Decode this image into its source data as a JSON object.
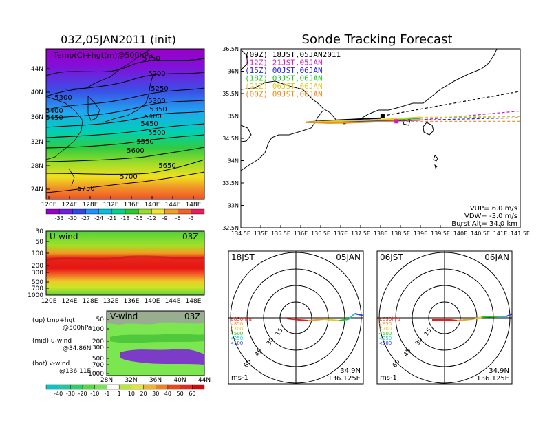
{
  "left_title": "03Z,05JAN2011  (init)",
  "right_title": "Sonde Tracking Forecast",
  "upper_map": {
    "label": "Temp(C)+hgt(m)@500hPa",
    "lon_ticks": [
      "120E",
      "124E",
      "128E",
      "132E",
      "136E",
      "140E",
      "144E",
      "148E"
    ],
    "lat_ticks": [
      "44N",
      "40N",
      "36N",
      "32N",
      "28N",
      "24N"
    ],
    "contours": [
      {
        "label": "5150"
      },
      {
        "label": "5200"
      },
      {
        "label": "5250"
      },
      {
        "label": "5300"
      },
      {
        "label": "5300"
      },
      {
        "label": "5350"
      },
      {
        "label": "5400"
      },
      {
        "label": "5450"
      },
      {
        "label": "5500"
      },
      {
        "label": "5550"
      },
      {
        "label": "5600"
      },
      {
        "label": "5650"
      },
      {
        "label": "5700"
      },
      {
        "label": "5750"
      },
      {
        "label": "5400"
      },
      {
        "label": "5450"
      }
    ],
    "temp_scale": [
      "-33",
      "-30",
      "-27",
      "-24",
      "-21",
      "-18",
      "-15",
      "-12",
      "-9",
      "-6",
      "-3"
    ],
    "temp_colors": [
      "#9a00c8",
      "#6e20e0",
      "#3048e6",
      "#1e90ff",
      "#00c0e0",
      "#00d48c",
      "#28c828",
      "#98dc28",
      "#f0e628",
      "#f0a028",
      "#f06428",
      "#e61e5a"
    ]
  },
  "u_panel": {
    "label": "U-wind",
    "time": "03Z",
    "p_ticks": [
      "30",
      "50",
      "100",
      "200",
      "300",
      "500",
      "700",
      "1000"
    ],
    "lon_ticks": [
      "120E",
      "124E",
      "128E",
      "132E",
      "136E",
      "140E",
      "144E",
      "148E"
    ]
  },
  "v_panel": {
    "label": "V-wind",
    "time": "03Z",
    "p_ticks": [
      "50",
      "100",
      "200",
      "300",
      "500",
      "700",
      "1000"
    ],
    "lat_ticks": [
      "28N",
      "32N",
      "36N",
      "40N",
      "44N"
    ]
  },
  "side_notes": {
    "up": "(up) tmp+hgt",
    "up2": "@500hPa",
    "mid": "(mid) u-wind",
    "mid2": "@34.86N",
    "bot": "(bot) v-wind",
    "bot2": "@136.11E"
  },
  "wind_scale": [
    "-40",
    "-30",
    "-20",
    "-10",
    "-1",
    "1",
    "10",
    "20",
    "30",
    "40",
    "50",
    "60"
  ],
  "wind_colors": [
    "#00c8c8",
    "#1ec8a0",
    "#28d264",
    "#50dc3c",
    "#78e650",
    "#ffffff",
    "#b4ec28",
    "#e6e628",
    "#f0b428",
    "#f0821e",
    "#f04614",
    "#e6281e",
    "#d20a0a"
  ],
  "chart_data": {
    "type": "line",
    "title": "Sonde Tracking Forecast",
    "x_ticks": [
      "134.5E",
      "135E",
      "135.5E",
      "136E",
      "136.5E",
      "137E",
      "137.5E",
      "138E",
      "138.5E",
      "139E",
      "139.5E",
      "140E",
      "140.5E",
      "141E",
      "141.5E"
    ],
    "y_ticks": [
      "36.5N",
      "36N",
      "35.5N",
      "35N",
      "34.5N",
      "34N",
      "33.5N",
      "33N",
      "32.5N"
    ],
    "xlim": [
      134.5,
      141.5
    ],
    "ylim": [
      32.5,
      36.5
    ],
    "series": [
      {
        "name": "(09Z)  18JST,05JAN2011",
        "color": "#000000",
        "x": [
          136.125,
          136.8,
          137.5,
          138.0,
          138.05
        ],
        "y": [
          34.86,
          34.9,
          34.93,
          34.95,
          35.0
        ]
      },
      {
        "name": "(12Z)  21JST,05JAN",
        "color": "#c81ec8",
        "x": [
          136.125,
          136.8,
          137.5,
          138.3,
          139.0
        ],
        "y": [
          34.86,
          34.87,
          34.88,
          34.89,
          34.91
        ]
      },
      {
        "name": "(15Z)  00JST,06JAN",
        "color": "#2828e6",
        "x": [
          136.125,
          136.8,
          137.5,
          138.2,
          138.6
        ],
        "y": [
          34.86,
          34.87,
          34.88,
          34.89,
          34.9
        ]
      },
      {
        "name": "(18Z)  03JST,06JAN",
        "color": "#1ec81e",
        "x": [
          136.125,
          136.8,
          137.5,
          138.3,
          139.0
        ],
        "y": [
          34.86,
          34.88,
          34.9,
          34.92,
          34.95
        ]
      },
      {
        "name": "(21Z)  06JST,06JAN",
        "color": "#e6c828",
        "x": [
          136.125,
          136.8,
          137.5,
          138.3,
          139.0
        ],
        "y": [
          34.86,
          34.88,
          34.9,
          34.93,
          34.97
        ]
      },
      {
        "name": "(00Z)  09JST,06JAN",
        "color": "#f08c1e",
        "x": [
          136.125,
          136.7,
          137.3,
          137.9,
          138.4
        ],
        "y": [
          34.86,
          34.84,
          34.85,
          34.87,
          34.88
        ]
      }
    ],
    "burst_marks": [
      {
        "x": 138.05,
        "y": 35.0,
        "color": "#000000"
      },
      {
        "x": 138.4,
        "y": 34.88,
        "color": "#c81ec8"
      }
    ],
    "info": [
      "VUP=  6.0  m/s",
      "VDW= -3.0  m/s",
      "Burst Alt= 34.0  km"
    ]
  },
  "hodographs": [
    {
      "time_left": "18JST",
      "time_right": "05JAN",
      "rings": [
        "15",
        "30",
        "45",
        "60"
      ],
      "units": "ms-1",
      "lat": "34.9N",
      "lon": "136.125E",
      "levels": [
        {
          "label": "≥850hPa",
          "color": "#e61e1e"
        },
        {
          "label": "<850",
          "color": "#f0a028"
        },
        {
          "label": "<700",
          "color": "#e6c828"
        },
        {
          "label": "<500",
          "color": "#1ec81e"
        },
        {
          "label": "<250",
          "color": "#1ec8c8"
        },
        {
          "label": "<100",
          "color": "#2846e6"
        }
      ]
    },
    {
      "time_left": "06JST",
      "time_right": "06JAN",
      "rings": [
        "15",
        "30",
        "45",
        "60"
      ],
      "units": "ms-1",
      "lat": "34.9N",
      "lon": "136.125E",
      "levels": [
        {
          "label": "≥850hPa",
          "color": "#e61e1e"
        },
        {
          "label": "<850",
          "color": "#f0a028"
        },
        {
          "label": "<700",
          "color": "#e6c828"
        },
        {
          "label": "<500",
          "color": "#1ec81e"
        },
        {
          "label": "<250",
          "color": "#1ec8c8"
        },
        {
          "label": "<100",
          "color": "#2846e6"
        }
      ]
    }
  ]
}
